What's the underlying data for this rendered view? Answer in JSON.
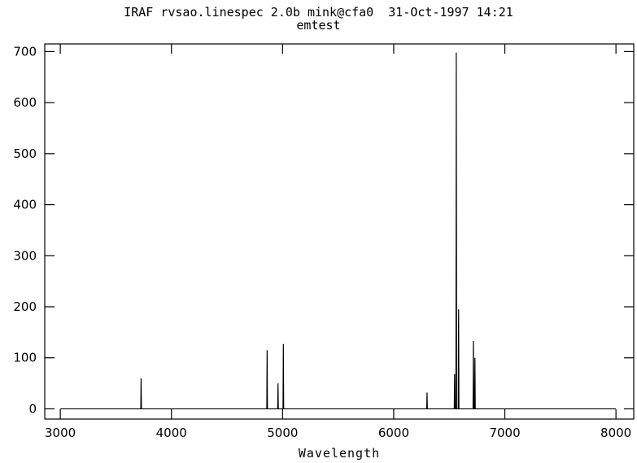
{
  "chart_data": {
    "type": "line",
    "title": "IRAF rvsao.linespec 2.0b mink@cfa0  31-Oct-1997 14:21",
    "subtitle": "emtest",
    "xlabel": "Wavelength",
    "ylabel": "",
    "xlim": [
      2860,
      8160
    ],
    "ylim": [
      -20,
      715
    ],
    "x_ticks": [
      3000,
      4000,
      5000,
      6000,
      7000,
      8000
    ],
    "y_ticks": [
      0,
      100,
      200,
      300,
      400,
      500,
      600,
      700
    ],
    "grid": false,
    "line_color": "#000000",
    "series": [
      {
        "continuum": 0,
        "x_range": [
          3000,
          8000
        ],
        "lines": [
          {
            "x": 3727,
            "y": 60
          },
          {
            "x": 4861,
            "y": 115
          },
          {
            "x": 4959,
            "y": 50
          },
          {
            "x": 5007,
            "y": 127
          },
          {
            "x": 6300,
            "y": 32
          },
          {
            "x": 6548,
            "y": 68
          },
          {
            "x": 6563,
            "y": 698
          },
          {
            "x": 6584,
            "y": 195
          },
          {
            "x": 6717,
            "y": 133
          },
          {
            "x": 6731,
            "y": 100
          }
        ]
      }
    ]
  }
}
